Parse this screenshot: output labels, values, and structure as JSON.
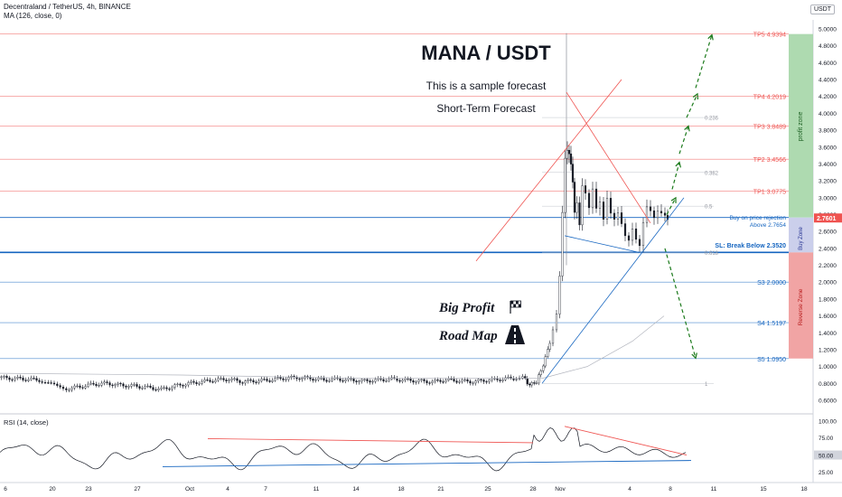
{
  "header": {
    "symbol_line": "Decentraland / TetherUS, 4h, BINANCE",
    "ma_line": "MA (126, close, 0)",
    "quote": "USDT"
  },
  "annotations": {
    "title": "MANA / USDT",
    "subtitle": "This is a sample forecast",
    "term": "Short-Term Forecast",
    "big_profit": "Big Profit",
    "road_map": "Road Map",
    "buy_rejection": "Buy on price rejection",
    "buy_above": "Above 2.7654",
    "sl": "SL: Break Below 2.3520"
  },
  "zones": {
    "profit": "profit zone",
    "buy": "Buy Zone",
    "reverse": "Reverse Zone"
  },
  "colors": {
    "candle_dark": "#131722",
    "target_red": "#ef5350",
    "support_blue": "#1565c0",
    "arrow_green": "#1b7a1b",
    "profit_zone": "#a5d6a7",
    "buy_zone": "#c5cae9",
    "reverse_zone": "#ef9a9a",
    "price_tag": "#ef5350"
  },
  "chart_data": {
    "type": "candlestick",
    "price_axis": {
      "range": [
        0.5,
        5.0
      ],
      "ticks": [
        "5.0000",
        "4.8000",
        "4.6000",
        "4.4000",
        "4.2000",
        "4.0000",
        "3.8000",
        "3.6000",
        "3.4000",
        "3.2000",
        "3.0000",
        "2.8000",
        "2.6000",
        "2.4000",
        "2.2000",
        "2.0000",
        "1.8000",
        "1.6000",
        "1.4000",
        "1.2000",
        "1.0000",
        "0.8000",
        "0.6000"
      ],
      "last_price": "2.7601",
      "scale": "linear"
    },
    "time_axis": {
      "ticks": [
        "6",
        "20",
        "23",
        "27",
        "Oct",
        "4",
        "7",
        "11",
        "14",
        "18",
        "21",
        "25",
        "28",
        "Nov",
        "4",
        "8",
        "11",
        "15",
        "18"
      ]
    },
    "levels": [
      {
        "label": "TP5 4.9394",
        "value": 4.9394,
        "kind": "target"
      },
      {
        "label": "TP4 4.2019",
        "value": 4.2019,
        "kind": "target"
      },
      {
        "label": "TP3 3.8489",
        "value": 3.8489,
        "kind": "target"
      },
      {
        "label": "TP2 3.4566",
        "value": 3.4566,
        "kind": "target"
      },
      {
        "label": "TP1 3.0775",
        "value": 3.0775,
        "kind": "target"
      },
      {
        "label": "S3 2.0000",
        "value": 2.0,
        "kind": "support"
      },
      {
        "label": "S4 1.5197",
        "value": 1.5197,
        "kind": "support"
      },
      {
        "label": "S5 1.0950",
        "value": 1.095,
        "kind": "support"
      }
    ],
    "buy_level": 2.7654,
    "sl_level": 2.352,
    "fib": [
      {
        "label": "0.236",
        "value": 3.95
      },
      {
        "label": "0.382",
        "value": 3.3
      },
      {
        "label": "0.5",
        "value": 2.9
      },
      {
        "label": "0.618",
        "value": 2.35
      },
      {
        "label": "1",
        "value": 0.8
      }
    ],
    "price_path": [
      [
        0,
        0.87
      ],
      [
        15,
        0.86
      ],
      [
        30,
        0.85
      ],
      [
        45,
        0.84
      ],
      [
        55,
        0.8
      ],
      [
        65,
        0.76
      ],
      [
        75,
        0.74
      ],
      [
        90,
        0.76
      ],
      [
        105,
        0.79
      ],
      [
        120,
        0.8
      ],
      [
        135,
        0.78
      ],
      [
        150,
        0.77
      ],
      [
        165,
        0.75
      ],
      [
        180,
        0.73
      ],
      [
        195,
        0.77
      ],
      [
        210,
        0.8
      ],
      [
        225,
        0.82
      ],
      [
        240,
        0.84
      ],
      [
        255,
        0.85
      ],
      [
        270,
        0.82
      ],
      [
        285,
        0.83
      ],
      [
        300,
        0.84
      ],
      [
        315,
        0.86
      ],
      [
        330,
        0.87
      ],
      [
        345,
        0.86
      ],
      [
        360,
        0.84
      ],
      [
        375,
        0.85
      ],
      [
        390,
        0.84
      ],
      [
        405,
        0.83
      ],
      [
        420,
        0.84
      ],
      [
        435,
        0.85
      ],
      [
        450,
        0.84
      ],
      [
        465,
        0.83
      ],
      [
        480,
        0.82
      ],
      [
        495,
        0.84
      ],
      [
        510,
        0.83
      ],
      [
        525,
        0.82
      ],
      [
        540,
        0.84
      ],
      [
        555,
        0.85
      ],
      [
        570,
        0.86
      ],
      [
        580,
        0.88
      ],
      [
        585,
        0.8
      ],
      [
        590,
        0.79
      ],
      [
        595,
        0.82
      ],
      [
        600,
        0.95
      ],
      [
        605,
        1.1
      ],
      [
        610,
        1.3
      ],
      [
        614,
        1.45
      ],
      [
        618,
        1.65
      ],
      [
        621,
        2.1
      ],
      [
        624,
        2.8
      ],
      [
        627,
        3.4
      ],
      [
        629,
        3.6
      ],
      [
        631,
        3.5
      ],
      [
        633,
        3.4
      ],
      [
        635,
        3.2
      ],
      [
        637,
        2.8
      ],
      [
        640,
        3.0
      ],
      [
        643,
        2.7
      ],
      [
        646,
        3.1
      ],
      [
        650,
        3.0
      ],
      [
        654,
        2.85
      ],
      [
        658,
        3.1
      ],
      [
        662,
        2.9
      ],
      [
        666,
        3.0
      ],
      [
        670,
        2.8
      ],
      [
        674,
        3.05
      ],
      [
        678,
        2.85
      ],
      [
        682,
        2.75
      ],
      [
        686,
        2.8
      ],
      [
        690,
        2.65
      ],
      [
        694,
        2.5
      ],
      [
        698,
        2.45
      ],
      [
        702,
        2.6
      ],
      [
        706,
        2.5
      ],
      [
        710,
        2.45
      ],
      [
        714,
        2.75
      ],
      [
        718,
        2.95
      ],
      [
        722,
        2.9
      ],
      [
        726,
        2.8
      ],
      [
        730,
        2.85
      ],
      [
        734,
        2.8
      ],
      [
        738,
        2.75
      ],
      [
        740,
        2.76
      ]
    ],
    "rsi": {
      "label": "RSI (14, close)",
      "range": [
        15,
        105
      ],
      "ticks": [
        "100.00",
        "75.00",
        "50.00",
        "25.00"
      ],
      "current": "50.00"
    }
  }
}
